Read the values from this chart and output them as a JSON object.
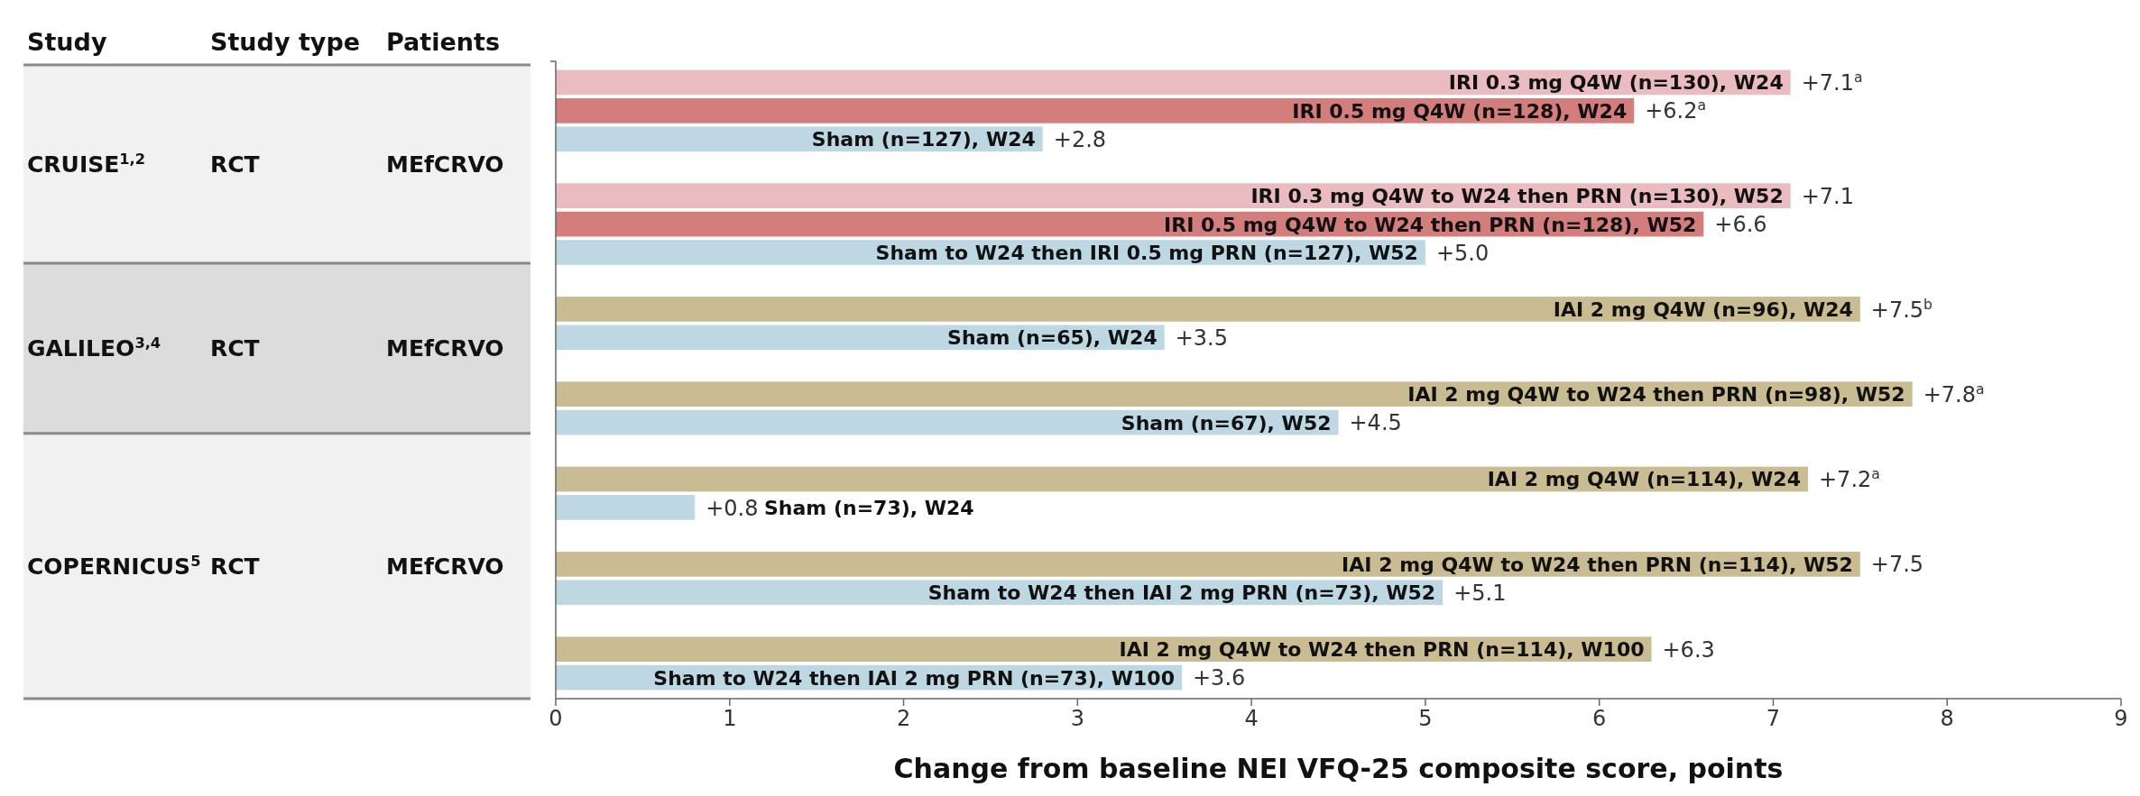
{
  "chart_data": [
    {
      "type": "other",
      "categories": [
        "Study",
        "Study type",
        "Patients"
      ],
      "annotations": [
        "CRUISE$^{1,2}$",
        "RCT",
        "MEfCRVO",
        "GALILEO$^{3,4}$",
        "RCT",
        "MEfCRVO",
        "COPERNICUS$^{5}$",
        "RCT",
        "MEfCRVO"
      ]
    },
    {
      "type": "bar",
      "orientation": "horizontal",
      "xlabel": "Change from baseline NEI VFQ-25 composite score, points",
      "categories": [
        "IRI 0.3 mg Q4W (n=130), W24",
        "IRI 0.5 mg Q4W (n=128), W24",
        "Sham (n=127), W24",
        null,
        "IRI 0.3 mg Q4W to W24 then PRN (n=130), W52",
        "IRI 0.5 mg Q4W to W24 then PRN (n=128), W52",
        "Sham to W24 then IRI 0.5 mg PRN (n=127), W52",
        null,
        "IAI 2 mg Q4W (n=96), W24",
        "Sham (n=65), W24",
        null,
        "IAI 2 mg Q4W to W24 then PRN (n=98), W52",
        "Sham (n=67), W52",
        null,
        "IAI 2 mg Q4W (n=114), W24",
        "Sham (n=73), W24",
        null,
        "IAI 2 mg Q4W to W24 then PRN (n=114), W52",
        "Sham to W24 then IAI 2 mg PRN (n=73), W52",
        null,
        "IAI 2 mg Q4W to W24 then PRN (n=114), W100",
        "Sham to W24 then IAI 2 mg PRN (n=73), W100"
      ],
      "values": [
        7.1,
        6.2,
        2.8,
        null,
        7.1,
        6.6,
        5.0,
        null,
        7.5,
        3.5,
        null,
        7.8,
        4.5,
        null,
        7.2,
        0.8,
        null,
        7.5,
        5.1,
        null,
        6.3,
        3.6
      ],
      "value_labels": [
        "+7.1$^{a}$",
        "+6.2$^{a}$",
        "+2.8",
        null,
        "+7.1",
        "+6.6",
        "+5.0",
        null,
        "+7.5$^{b}$",
        "+3.5",
        null,
        "+7.8$^{a}$",
        "+4.5",
        null,
        "+7.2$^{a}$",
        "+0.8",
        null,
        "+7.5",
        "+5.1",
        null,
        "+6.3",
        "+3.6"
      ],
      "colors": [
        "#ebbcbf",
        "#d47d7d",
        "#bed8e3",
        null,
        "#ebbcbf",
        "#d47d7d",
        "#bed8e3",
        null,
        "#c9bc93",
        "#bed8e3",
        null,
        "#c9bc93",
        "#bed8e3",
        null,
        "#c9bc93",
        "#bed8e3",
        null,
        "#c9bc93",
        "#bed8e3",
        null,
        "#c9bc93",
        "#bed8e3"
      ],
      "xlim": [
        0,
        9
      ],
      "xticks": [
        0,
        1,
        2,
        3,
        4,
        5,
        6,
        7,
        8,
        9
      ]
    }
  ]
}
